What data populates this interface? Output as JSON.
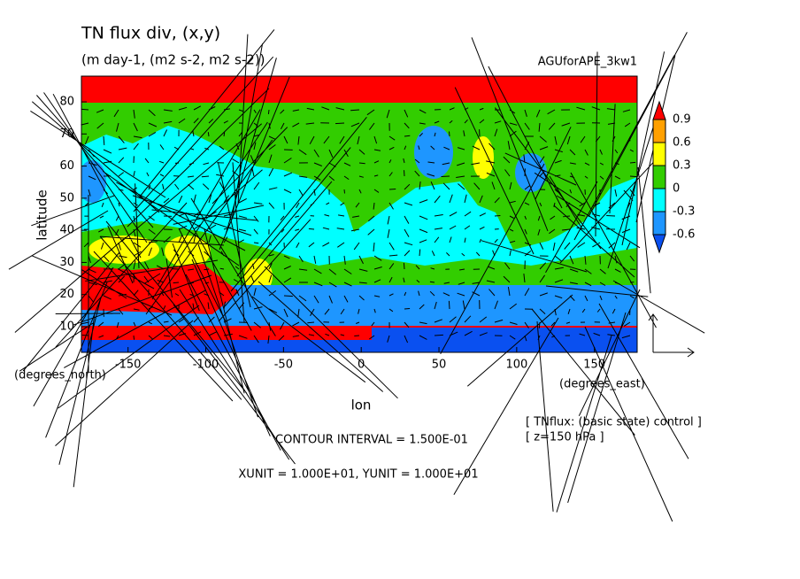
{
  "chart_data": {
    "type": "contour",
    "title": "TN flux div, (x,y)",
    "subtitle": "(m day-1, (m2 s-2, m2 s-2))",
    "dataset": "AGUforAPE_3kw1",
    "xlabel": "lon",
    "ylabel": "latitude",
    "xunit": "(degrees_east)",
    "yunit": "(degrees_north)",
    "xlim": [
      -180,
      177.5
    ],
    "ylim": [
      2,
      88
    ],
    "xticks": [
      -150,
      -100,
      -50,
      0,
      50,
      100,
      150
    ],
    "yticks": [
      10,
      20,
      30,
      40,
      50,
      60,
      70,
      80
    ],
    "colorbar": {
      "levels": [
        -0.6,
        -0.3,
        0,
        0.3,
        0.6,
        0.9
      ],
      "colors": [
        "#0a50f0",
        "#1e96ff",
        "#00ffff",
        "#32cd00",
        "#ffff00",
        "#ffa000",
        "#ff0000"
      ]
    },
    "contour_interval": "CONTOUR INTERVAL = 1.500E-01",
    "vector_units": "XUNIT = 1.000E+01, YUNIT = 1.000E+01",
    "variable_note": "[ TNflux: (basic state) control ]",
    "level_note": "[ z=150 hPa ]"
  }
}
